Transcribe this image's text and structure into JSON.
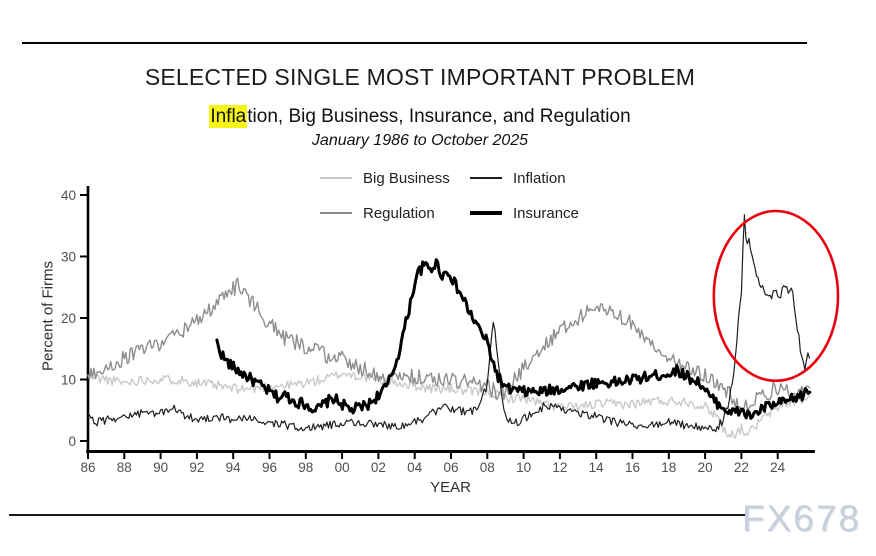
{
  "watermark": {
    "text": "FX678",
    "color": "#c7cfdc"
  },
  "chart_data": {
    "type": "line",
    "title": "SELECTED SINGLE MOST IMPORTANT PROBLEM",
    "subtitle_parts": {
      "highlight": "Infla",
      "rest": "tion, Big Business, Insurance, and Regulation"
    },
    "period": "January 1986 to October 2025",
    "xlabel": "YEAR",
    "ylabel": "Percent of Firms",
    "ylim": [
      0,
      40
    ],
    "y_ticks": [
      0,
      10,
      20,
      30,
      40
    ],
    "x_tick_labels": [
      "86",
      "88",
      "90",
      "92",
      "94",
      "96",
      "98",
      "00",
      "02",
      "04",
      "06",
      "08",
      "10",
      "12",
      "14",
      "16",
      "18",
      "20",
      "22",
      "24"
    ],
    "x_tick_years": [
      1986,
      1988,
      1990,
      1992,
      1994,
      1996,
      1998,
      2000,
      2002,
      2004,
      2006,
      2008,
      2010,
      2012,
      2014,
      2016,
      2018,
      2020,
      2022,
      2024
    ],
    "x_range_years": [
      1985.9,
      2026.05
    ],
    "grid": false,
    "legend_position": "top",
    "tick_color": "#4f4f4f",
    "axis_color": "#000000",
    "annotation_ellipse": {
      "cx_year": 2023.9,
      "cy_value": 23.6,
      "rx_years": 3.42,
      "ry_values": 13.8,
      "color": "#e8000d",
      "width": 2.6
    },
    "series": [
      {
        "name": "Big Business",
        "color": "#c9c9c9",
        "width": 1.4,
        "noise": 0.8,
        "seed": 11,
        "anchors": [
          [
            1986,
            10.5
          ],
          [
            1987,
            10
          ],
          [
            1988,
            9.5
          ],
          [
            1989,
            10
          ],
          [
            1990,
            10
          ],
          [
            1991,
            10
          ],
          [
            1992,
            9.5
          ],
          [
            1993,
            9
          ],
          [
            1994,
            8.5
          ],
          [
            1995,
            8.5
          ],
          [
            1996,
            9
          ],
          [
            1997,
            9
          ],
          [
            1998,
            9.5
          ],
          [
            1999,
            10
          ],
          [
            2000,
            11
          ],
          [
            2001,
            10.5
          ],
          [
            2002,
            10
          ],
          [
            2003,
            9.5
          ],
          [
            2004,
            9
          ],
          [
            2005,
            8.5
          ],
          [
            2006,
            8.5
          ],
          [
            2007,
            8
          ],
          [
            2008,
            8
          ],
          [
            2009,
            7
          ],
          [
            2010,
            7
          ],
          [
            2011,
            6
          ],
          [
            2012,
            5.5
          ],
          [
            2013,
            5.5
          ],
          [
            2014,
            6
          ],
          [
            2015,
            6
          ],
          [
            2016,
            6
          ],
          [
            2017,
            6.5
          ],
          [
            2018,
            6.5
          ],
          [
            2019,
            6.5
          ],
          [
            2020,
            5.5
          ],
          [
            2020.7,
            4
          ],
          [
            2021.1,
            1.5
          ],
          [
            2021.6,
            1
          ],
          [
            2022,
            2
          ],
          [
            2022.4,
            1.2
          ],
          [
            2022.8,
            2.5
          ],
          [
            2023.3,
            4
          ],
          [
            2023.8,
            5
          ],
          [
            2024.3,
            6
          ],
          [
            2025,
            6.5
          ],
          [
            2025.83,
            7
          ]
        ]
      },
      {
        "name": "Regulation",
        "color": "#8d8d8d",
        "width": 1.4,
        "noise": 1.3,
        "seed": 5,
        "anchors": [
          [
            1986,
            10.5
          ],
          [
            1987,
            12
          ],
          [
            1988,
            13.5
          ],
          [
            1989,
            15
          ],
          [
            1990,
            16
          ],
          [
            1991,
            17.5
          ],
          [
            1992,
            19.5
          ],
          [
            1993,
            22
          ],
          [
            1993.7,
            24
          ],
          [
            1994.3,
            25.5
          ],
          [
            1994.8,
            23.5
          ],
          [
            1995.5,
            21
          ],
          [
            1996,
            19
          ],
          [
            1996.5,
            17.5
          ],
          [
            1997,
            16.5
          ],
          [
            1998,
            15.5
          ],
          [
            1999,
            14
          ],
          [
            2000,
            13.5
          ],
          [
            2001,
            12
          ],
          [
            2002,
            10.5
          ],
          [
            2003,
            10
          ],
          [
            2004,
            10.5
          ],
          [
            2005,
            10
          ],
          [
            2006,
            10
          ],
          [
            2007,
            9.5
          ],
          [
            2008,
            9
          ],
          [
            2008.7,
            7.5
          ],
          [
            2009.3,
            9
          ],
          [
            2010,
            12
          ],
          [
            2011,
            15
          ],
          [
            2012,
            18
          ],
          [
            2013,
            20
          ],
          [
            2014,
            21.5
          ],
          [
            2014.4,
            22
          ],
          [
            2015,
            21
          ],
          [
            2016,
            19
          ],
          [
            2017,
            16
          ],
          [
            2018,
            13.5
          ],
          [
            2019,
            12
          ],
          [
            2020,
            10.5
          ],
          [
            2021,
            8.5
          ],
          [
            2021.7,
            6.5
          ],
          [
            2022.3,
            5.5
          ],
          [
            2023,
            7.5
          ],
          [
            2024,
            8.5
          ],
          [
            2025,
            8
          ],
          [
            2025.83,
            7.5
          ]
        ]
      },
      {
        "name": "Inflation",
        "color": "#1f1f1f",
        "width": 1.2,
        "noise": 0.7,
        "seed": 29,
        "anchors": [
          [
            1986,
            4
          ],
          [
            1986.5,
            3
          ],
          [
            1987,
            3.5
          ],
          [
            1988,
            4
          ],
          [
            1989,
            4.5
          ],
          [
            1990,
            4.5
          ],
          [
            1990.6,
            5.5
          ],
          [
            1991,
            4.5
          ],
          [
            1992,
            3.5
          ],
          [
            1993,
            4
          ],
          [
            1994,
            3.5
          ],
          [
            1995,
            3.5
          ],
          [
            1996,
            3
          ],
          [
            1997,
            2.5
          ],
          [
            1998,
            2
          ],
          [
            1999,
            2.5
          ],
          [
            2000,
            3
          ],
          [
            2001,
            3
          ],
          [
            2002,
            2.5
          ],
          [
            2003,
            2.5
          ],
          [
            2004,
            3
          ],
          [
            2005,
            4.5
          ],
          [
            2005.8,
            5.5
          ],
          [
            2006.5,
            5
          ],
          [
            2007,
            4.5
          ],
          [
            2007.6,
            6
          ],
          [
            2008,
            9
          ],
          [
            2008.35,
            20
          ],
          [
            2008.7,
            10
          ],
          [
            2009,
            4
          ],
          [
            2009.5,
            3
          ],
          [
            2010,
            3.5
          ],
          [
            2010.8,
            5
          ],
          [
            2011.3,
            6
          ],
          [
            2012,
            5
          ],
          [
            2013,
            4.5
          ],
          [
            2014,
            4
          ],
          [
            2015,
            3
          ],
          [
            2016,
            2.5
          ],
          [
            2017,
            2.5
          ],
          [
            2018,
            3
          ],
          [
            2019,
            2.5
          ],
          [
            2020,
            2
          ],
          [
            2020.6,
            2
          ],
          [
            2021,
            3.5
          ],
          [
            2021.3,
            6
          ],
          [
            2021.6,
            11
          ],
          [
            2021.85,
            20
          ],
          [
            2022,
            24
          ],
          [
            2022.15,
            37
          ],
          [
            2022.3,
            31
          ],
          [
            2022.4,
            34
          ],
          [
            2022.55,
            30
          ],
          [
            2022.75,
            28
          ],
          [
            2023,
            26
          ],
          [
            2023.3,
            23.5
          ],
          [
            2023.6,
            23
          ],
          [
            2023.9,
            25
          ],
          [
            2024.1,
            23
          ],
          [
            2024.35,
            25.5
          ],
          [
            2024.6,
            24
          ],
          [
            2024.8,
            25.5
          ],
          [
            2025,
            20
          ],
          [
            2025.25,
            15
          ],
          [
            2025.5,
            11
          ],
          [
            2025.65,
            14
          ],
          [
            2025.83,
            12
          ]
        ]
      },
      {
        "name": "Insurance",
        "color": "#000000",
        "width": 3,
        "noise": 0.9,
        "seed": 17,
        "anchors": [
          [
            1993.1,
            16
          ],
          [
            1993.3,
            14.5
          ],
          [
            1993.6,
            13
          ],
          [
            1994,
            12
          ],
          [
            1994.5,
            11
          ],
          [
            1995,
            10
          ],
          [
            1995.5,
            9
          ],
          [
            1996,
            8
          ],
          [
            1996.5,
            7
          ],
          [
            1996.9,
            7.5
          ],
          [
            1997.3,
            6.5
          ],
          [
            1998,
            6
          ],
          [
            1998.6,
            5
          ],
          [
            1999,
            6
          ],
          [
            1999.5,
            7
          ],
          [
            2000,
            6
          ],
          [
            2000.5,
            5
          ],
          [
            2001,
            5.5
          ],
          [
            2001.5,
            6
          ],
          [
            2002,
            7.5
          ],
          [
            2002.5,
            9
          ],
          [
            2003,
            13
          ],
          [
            2003.5,
            19
          ],
          [
            2003.8,
            23
          ],
          [
            2004.1,
            27
          ],
          [
            2004.5,
            28.5
          ],
          [
            2004.9,
            28
          ],
          [
            2005.2,
            29
          ],
          [
            2005.5,
            27
          ],
          [
            2005.9,
            27.5
          ],
          [
            2006.3,
            25
          ],
          [
            2006.7,
            23
          ],
          [
            2007,
            21
          ],
          [
            2007.5,
            18.5
          ],
          [
            2008,
            16
          ],
          [
            2008.5,
            11
          ],
          [
            2009,
            8.5
          ],
          [
            2010,
            8
          ],
          [
            2011,
            8
          ],
          [
            2012,
            8.5
          ],
          [
            2013,
            9
          ],
          [
            2014,
            9.5
          ],
          [
            2015,
            9.5
          ],
          [
            2016,
            10
          ],
          [
            2017,
            10.5
          ],
          [
            2018,
            11
          ],
          [
            2018.5,
            11.5
          ],
          [
            2019,
            10.5
          ],
          [
            2019.7,
            9.5
          ],
          [
            2020.3,
            7
          ],
          [
            2021,
            5.5
          ],
          [
            2021.5,
            4.5
          ],
          [
            2022,
            5
          ],
          [
            2022.4,
            4
          ],
          [
            2022.8,
            4.5
          ],
          [
            2023.3,
            5.5
          ],
          [
            2024,
            6
          ],
          [
            2024.6,
            6.5
          ],
          [
            2025,
            7
          ],
          [
            2025.4,
            7.5
          ],
          [
            2025.83,
            8.5
          ]
        ]
      }
    ],
    "legend_order": [
      0,
      2,
      1,
      3
    ]
  }
}
